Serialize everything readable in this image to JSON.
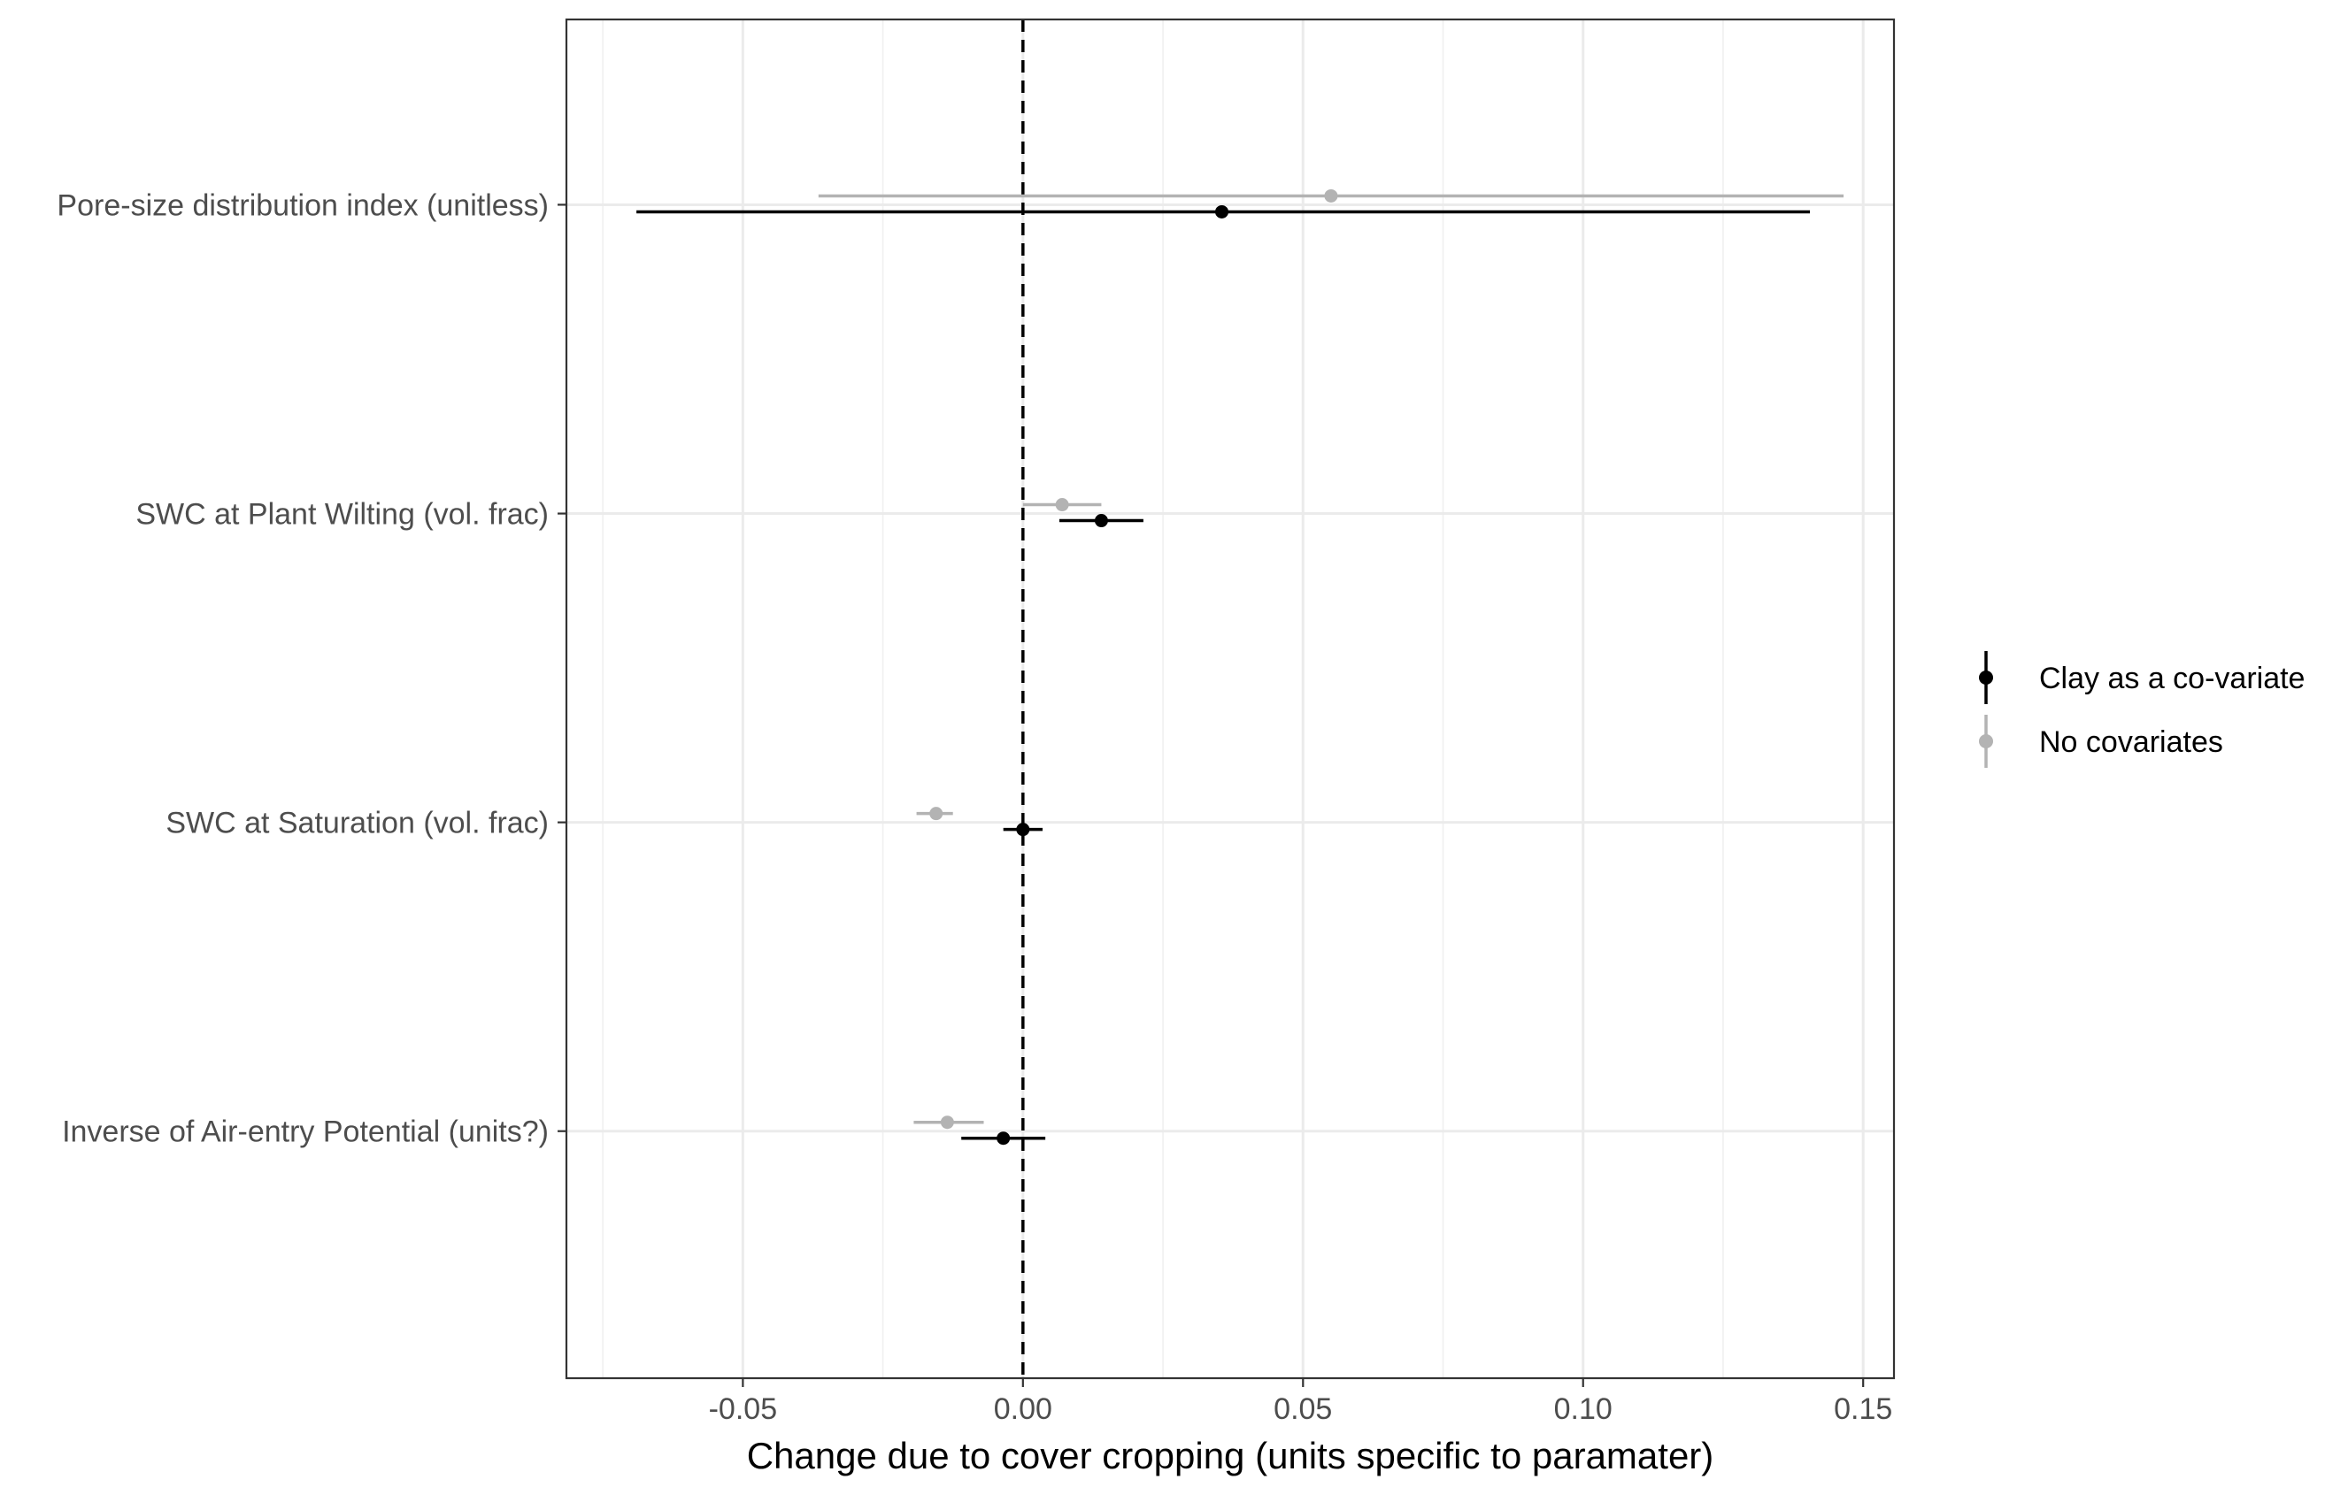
{
  "chart_data": {
    "type": "forest",
    "title": "",
    "xlabel": "Change due to cover cropping (units specific to paramater)",
    "ylabel": "",
    "xlim": [
      -0.0815,
      0.1555
    ],
    "x_ticks": [
      -0.05,
      0.0,
      0.05,
      0.1,
      0.15
    ],
    "x_tick_labels": [
      "-0.05",
      "0.00",
      "0.05",
      "0.10",
      "0.15"
    ],
    "categories": [
      "Pore-size distribution index (unitless)",
      "SWC at Plant Wilting (vol. frac)",
      "SWC at Saturation (vol. frac)",
      "Inverse of Air-entry Potential (units?)"
    ],
    "reference_line": {
      "x": 0,
      "style": "dashed"
    },
    "grid": true,
    "legend_position": "right",
    "series": [
      {
        "name": "Clay as a co-variate",
        "color": "#000000",
        "estimates": [
          0.0355,
          0.014,
          0.0,
          -0.0035
        ],
        "lower": [
          -0.069,
          0.0065,
          -0.0035,
          -0.011
        ],
        "upper": [
          0.1405,
          0.0215,
          0.0035,
          0.004
        ]
      },
      {
        "name": "No covariates",
        "color": "#b3b3b3",
        "estimates": [
          0.055,
          0.007,
          -0.0155,
          -0.0135
        ],
        "lower": [
          -0.0365,
          0.0,
          -0.019,
          -0.0195
        ],
        "upper": [
          0.1465,
          0.014,
          -0.0125,
          -0.007
        ]
      }
    ]
  }
}
